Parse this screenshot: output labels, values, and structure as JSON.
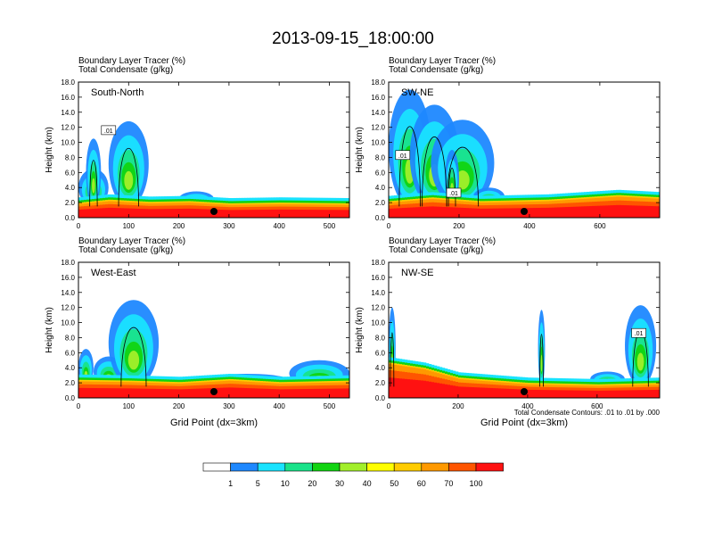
{
  "title": "2013-09-15_18:00:00",
  "colors": {
    "levels": [
      "#ffffff",
      "#1e88ff",
      "#19e3ff",
      "#19e38a",
      "#11d411",
      "#a2ef2a",
      "#ffff00",
      "#ffcc00",
      "#ff9900",
      "#ff5500",
      "#ff1111"
    ],
    "contour": "#000000"
  },
  "chart_data": [
    {
      "type": "heatmap",
      "panel": "south-north",
      "label": "South-North",
      "header": [
        "Boundary Layer Tracer   (%)",
        "Total Condensate   (g/kg)"
      ],
      "ylabel": "Height (km)",
      "xlabel": "",
      "xlim": [
        0,
        540
      ],
      "ylim": [
        0,
        18
      ],
      "xticks": [
        "0",
        "100",
        "200",
        "300",
        "400",
        "500"
      ],
      "xtick_values": [
        0,
        100,
        200,
        300,
        400,
        500
      ],
      "yticks": [
        "0.0",
        "2.0",
        "4.0",
        "6.0",
        "8.0",
        "10.0",
        "12.0",
        "14.0",
        "16.0",
        "18.0"
      ],
      "bl_top": [
        [
          0,
          1.8
        ],
        [
          60,
          2.2
        ],
        [
          140,
          1.9
        ],
        [
          220,
          2.0
        ],
        [
          300,
          1.7
        ],
        [
          400,
          1.8
        ],
        [
          540,
          1.7
        ]
      ],
      "plumes": [
        [
          0,
          60,
          6.5
        ],
        [
          15,
          45,
          10.5
        ],
        [
          60,
          140,
          12.8
        ],
        [
          200,
          270,
          3.5
        ]
      ],
      "contour_labels": [
        {
          "x": 60,
          "y": 11.5,
          "text": ".01"
        }
      ]
    },
    {
      "type": "heatmap",
      "panel": "sw-ne",
      "label": "SW-NE",
      "header": [
        "Boundary Layer Tracer   (%)",
        "Total Condensate   (g/kg)"
      ],
      "ylabel": "Height (km)",
      "xlabel": "",
      "xlim": [
        0,
        770
      ],
      "ylim": [
        0,
        18
      ],
      "xticks": [
        "0",
        "200",
        "400",
        "600"
      ],
      "xtick_values": [
        0,
        200,
        400,
        600
      ],
      "yticks": [
        "0.0",
        "2.0",
        "4.0",
        "6.0",
        "8.0",
        "10.0",
        "12.0",
        "14.0",
        "16.0",
        "18.0"
      ],
      "bl_top": [
        [
          0,
          2.0
        ],
        [
          120,
          2.5
        ],
        [
          260,
          2.0
        ],
        [
          450,
          2.2
        ],
        [
          650,
          2.8
        ],
        [
          770,
          2.5
        ]
      ],
      "plumes": [
        [
          0,
          120,
          17
        ],
        [
          60,
          200,
          15
        ],
        [
          120,
          300,
          13
        ],
        [
          160,
          200,
          9
        ],
        [
          240,
          330,
          4
        ]
      ],
      "contour_labels": [
        {
          "x": 40,
          "y": 8.2,
          "text": ".01"
        },
        {
          "x": 185,
          "y": 3.2,
          "text": ".01"
        }
      ]
    },
    {
      "type": "heatmap",
      "panel": "west-east",
      "label": "West-East",
      "header": [
        "Boundary Layer Tracer   (%)",
        "Total Condensate   (g/kg)"
      ],
      "ylabel": "Height (km)",
      "xlabel": "Grid Point (dx=3km)",
      "xlim": [
        0,
        540
      ],
      "ylim": [
        0,
        18
      ],
      "xticks": [
        "0",
        "100",
        "200",
        "300",
        "400",
        "500"
      ],
      "xtick_values": [
        0,
        100,
        200,
        300,
        400,
        500
      ],
      "yticks": [
        "0.0",
        "2.0",
        "4.0",
        "6.0",
        "8.0",
        "10.0",
        "12.0",
        "14.0",
        "16.0",
        "18.0"
      ],
      "bl_top": [
        [
          0,
          2.2
        ],
        [
          100,
          2.1
        ],
        [
          200,
          1.9
        ],
        [
          300,
          2.3
        ],
        [
          400,
          1.9
        ],
        [
          540,
          2.1
        ]
      ],
      "plumes": [
        [
          0,
          30,
          6.5
        ],
        [
          30,
          90,
          5.5
        ],
        [
          60,
          160,
          13
        ],
        [
          250,
          420,
          3.2
        ],
        [
          420,
          540,
          5.0
        ]
      ],
      "contour_labels": []
    },
    {
      "type": "heatmap",
      "panel": "nw-se",
      "label": "NW-SE",
      "header": [
        "Boundary Layer Tracer   (%)",
        "Total Condensate   (g/kg)"
      ],
      "ylabel": "Height (km)",
      "xlabel": "Grid Point (dx=3km)",
      "xlim": [
        0,
        780
      ],
      "ylim": [
        0,
        18
      ],
      "xticks": [
        "0",
        "200",
        "400",
        "600"
      ],
      "xtick_values": [
        0,
        200,
        400,
        600
      ],
      "yticks": [
        "0.0",
        "2.0",
        "4.0",
        "6.0",
        "8.0",
        "10.0",
        "12.0",
        "14.0",
        "16.0",
        "18.0"
      ],
      "bl_top": [
        [
          0,
          4.5
        ],
        [
          100,
          3.8
        ],
        [
          200,
          2.5
        ],
        [
          400,
          1.8
        ],
        [
          600,
          1.6
        ],
        [
          780,
          1.8
        ]
      ],
      "plumes": [
        [
          0,
          20,
          12
        ],
        [
          430,
          450,
          11.7
        ],
        [
          580,
          680,
          3.5
        ],
        [
          680,
          770,
          12.3
        ]
      ],
      "contour_labels": [
        {
          "x": 720,
          "y": 8.5,
          "text": ".01"
        }
      ],
      "footnote": "Total Condensate Contours: .01 to .01 by .000"
    }
  ],
  "colorbar": {
    "labels": [
      "1",
      "5",
      "10",
      "20",
      "30",
      "40",
      "50",
      "60",
      "70",
      "100"
    ]
  }
}
